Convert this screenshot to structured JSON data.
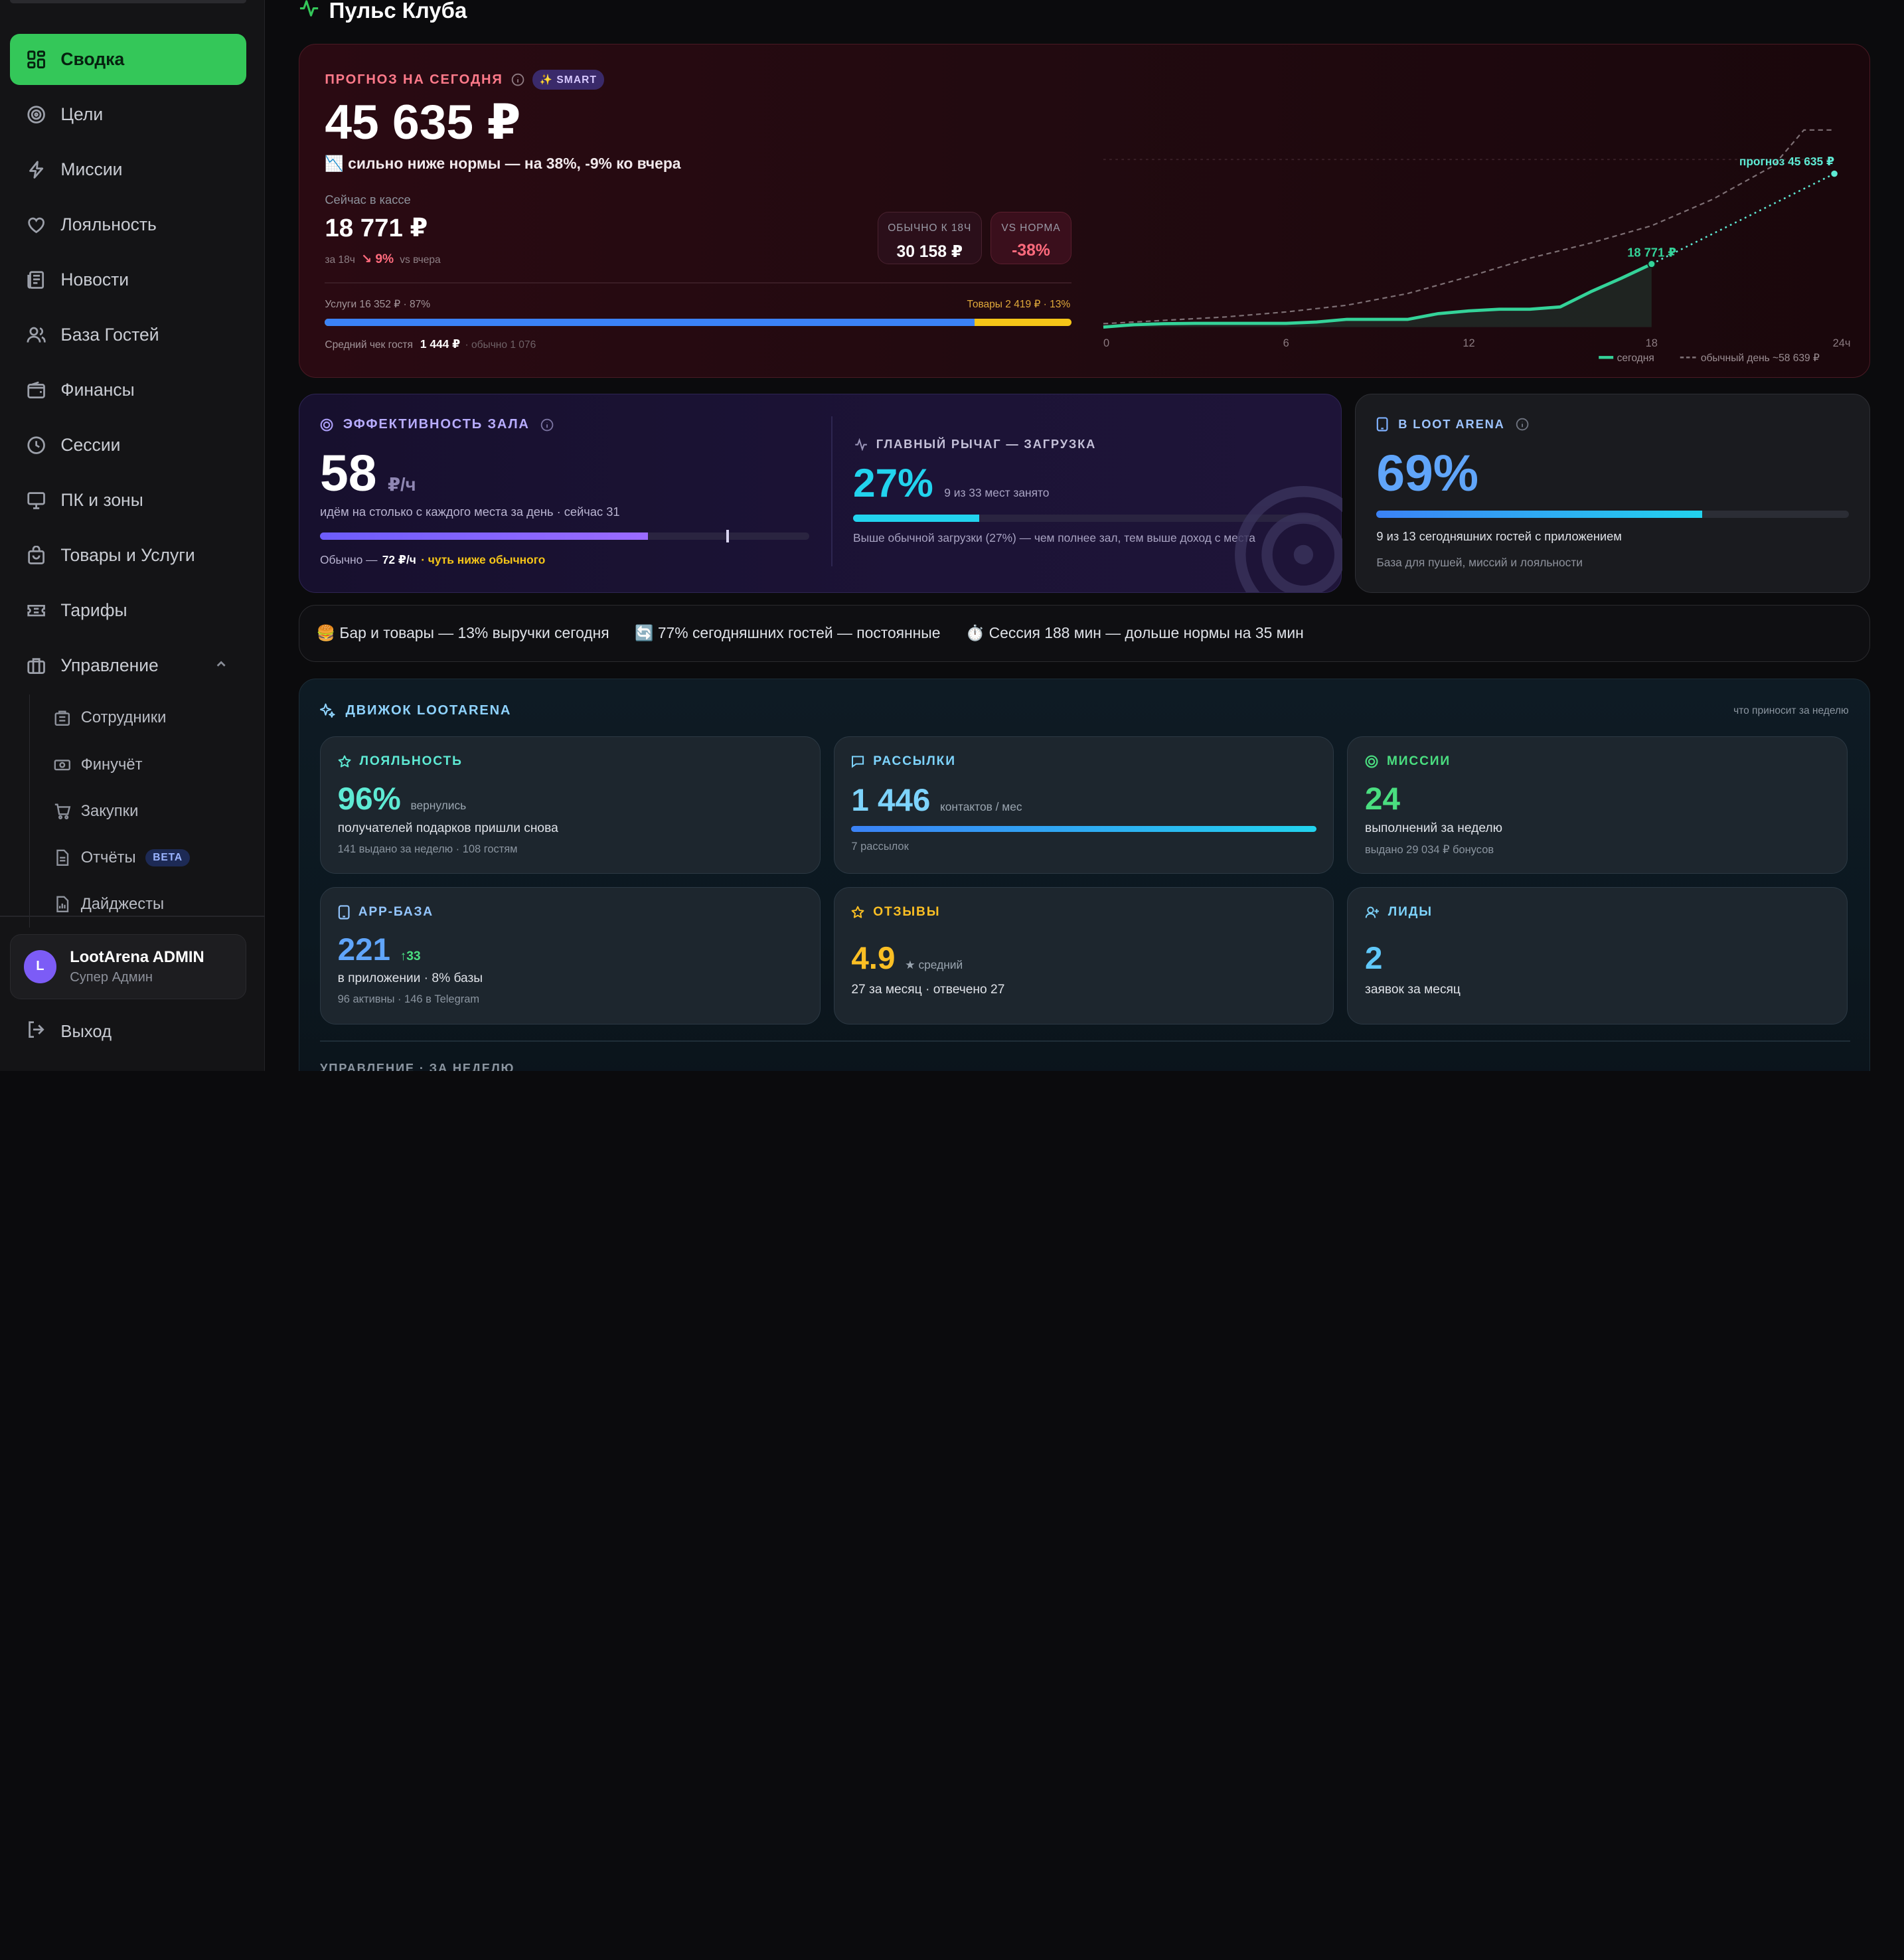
{
  "sidebar": {
    "nav": [
      {
        "label": "Сводка",
        "icon": "dashboard-icon",
        "active": true
      },
      {
        "label": "Цели",
        "icon": "target-icon"
      },
      {
        "label": "Миссии",
        "icon": "lightning-icon"
      },
      {
        "label": "Лояльность",
        "icon": "heart-icon"
      },
      {
        "label": "Новости",
        "icon": "newspaper-icon"
      },
      {
        "label": "База Гостей",
        "icon": "users-icon"
      },
      {
        "label": "Финансы",
        "icon": "wallet-icon"
      },
      {
        "label": "Сессии",
        "icon": "clock-icon"
      },
      {
        "label": "ПК и зоны",
        "icon": "monitor-icon"
      },
      {
        "label": "Товары и Услуги",
        "icon": "bag-icon"
      },
      {
        "label": "Тарифы",
        "icon": "ticket-icon"
      },
      {
        "label": "Управление",
        "icon": "briefcase-icon",
        "expanded": true
      }
    ],
    "sub": [
      {
        "label": "Сотрудники",
        "icon": "building-icon"
      },
      {
        "label": "Финучёт",
        "icon": "banknote-icon"
      },
      {
        "label": "Закупки",
        "icon": "cart-icon"
      },
      {
        "label": "Отчёты",
        "icon": "report-icon",
        "badge": "BETA"
      },
      {
        "label": "Дайджесты",
        "icon": "digest-icon"
      }
    ],
    "user": {
      "initial": "L",
      "name": "LootArena ADMIN",
      "role": "Супер Админ"
    },
    "logout": "Выход"
  },
  "page_title": "Пульс Клуба",
  "forecast": {
    "label": "ПРОГНОЗ НА СЕГОДНЯ",
    "badge": "✨ SMART",
    "value": "45 635 ₽",
    "note": "📉 сильно ниже нормы — на 38%, -9% ко вчера",
    "cash_label": "Сейчас в кассе",
    "cash_value": "18 771 ₽",
    "cash_sub_prefix": "за 18ч",
    "cash_delta": "↘ 9%",
    "cash_sub_suffix": "vs вчера",
    "usual_label": "ОБЫЧНО К 18Ч",
    "usual_value": "30 158 ₽",
    "norm_label": "VS НОРМА",
    "norm_value": "-38%",
    "services": "Услуги 16 352 ₽ · 87%",
    "goods": "Товары 2 419 ₽ · 13%",
    "services_share": 0.87,
    "avg_label": "Средний чек гостя",
    "avg_value": "1 444 ₽",
    "avg_usual": "· обычно 1 076"
  },
  "chart_data": {
    "type": "line",
    "x_ticks": [
      "0",
      "6",
      "12",
      "18",
      "24ч"
    ],
    "xlim": [
      0,
      24
    ],
    "series": [
      {
        "name": "сегодня",
        "x": [
          0,
          1,
          2,
          3,
          4,
          5,
          6,
          7,
          8,
          9,
          10,
          11,
          12,
          13,
          14,
          15,
          16,
          17,
          18
        ],
        "y": [
          0,
          700,
          1000,
          1100,
          1100,
          1100,
          1100,
          1500,
          2300,
          2300,
          2300,
          4000,
          4800,
          5300,
          5300,
          6000,
          10500,
          14500,
          18771
        ]
      },
      {
        "name": "обычный день ~58 639 ₽",
        "x": [
          0,
          2,
          4,
          6,
          8,
          10,
          12,
          14,
          16,
          18,
          20,
          22,
          23,
          24
        ],
        "y": [
          1000,
          2000,
          3000,
          4500,
          6500,
          10000,
          15000,
          20500,
          25000,
          30158,
          38000,
          48000,
          58639,
          58639
        ]
      },
      {
        "x": [
          18,
          24
        ],
        "y": [
          18771,
          45635
        ]
      }
    ],
    "ylim": [
      0,
      60000
    ],
    "labels": {
      "today": "18 771 ₽",
      "forecast": "прогноз 45 635 ₽"
    },
    "legend": [
      "сегодня",
      "обычный день ~58 639 ₽"
    ],
    "legend_position": "bottom-right",
    "colors": {
      "today": "#34d399",
      "usual": "#7d6f74",
      "forecast": "#5eead4"
    }
  },
  "efficiency": {
    "label": "ЭФФЕКТИВНОСТЬ ЗАЛА",
    "value": "58",
    "unit": "₽/ч",
    "sub": "идём на столько с каждого места за день · сейчас 31",
    "fill": 0.67,
    "marker": 0.83,
    "usual_prefix": "Обычно —",
    "usual_value": "72 ₽/ч",
    "usual_note": "· чуть ниже обычного",
    "lever_label": "ГЛАВНЫЙ РЫЧАГ — ЗАГРУЗКА",
    "lever_value": "27%",
    "lever_sub": "9 из 33 мест занято",
    "lever_fill": 0.27,
    "lever_note": "Выше обычной загрузки (27%) — чем полнее зал, тем выше доход с места"
  },
  "app_share": {
    "label": "В LOOT ARENA",
    "value": "69%",
    "fill": 0.69,
    "sub": "9 из 13 сегодняшних гостей с приложением",
    "note": "База для пушей, миссий и лояльности"
  },
  "insights": [
    "🍔 Бар и товары — 13% выручки сегодня",
    "🔄 77% сегодняшних гостей — постоянные",
    "⏱️ Сессия 188 мин — дольше нормы на 35 мин"
  ],
  "engine": {
    "label": "ДВИЖОК LOOTARENA",
    "right": "что приносит за неделю",
    "tiles": [
      {
        "label": "ЛОЯЛЬНОСТЬ",
        "value": "96%",
        "suffix": "вернулись",
        "line1": "получателей подарков пришли снова",
        "line2": "141 выдано за неделю · 108 гостям"
      },
      {
        "label": "РАССЫЛКИ",
        "value": "1 446",
        "suffix": "контактов / мес",
        "fill": 1.0,
        "line2": "7 рассылок"
      },
      {
        "label": "МИССИИ",
        "value": "24",
        "line1": "выполнений за неделю",
        "line2": "выдано 29 034 ₽ бонусов"
      },
      {
        "label": "APP-БАЗА",
        "value": "221",
        "suffix": "↑33",
        "line1": "в приложении · 8% базы",
        "line2": "96 активны · 146 в Telegram"
      },
      {
        "label": "ОТЗЫВЫ",
        "value": "4.9",
        "suffix": "★ средний",
        "line1": "27 за месяц · отвечено 27"
      },
      {
        "label": "ЛИДЫ",
        "value": "2",
        "line1": "заявок за месяц"
      }
    ],
    "footer": "УПРАВЛЕНИЕ · ЗА НЕДЕЛЮ"
  }
}
